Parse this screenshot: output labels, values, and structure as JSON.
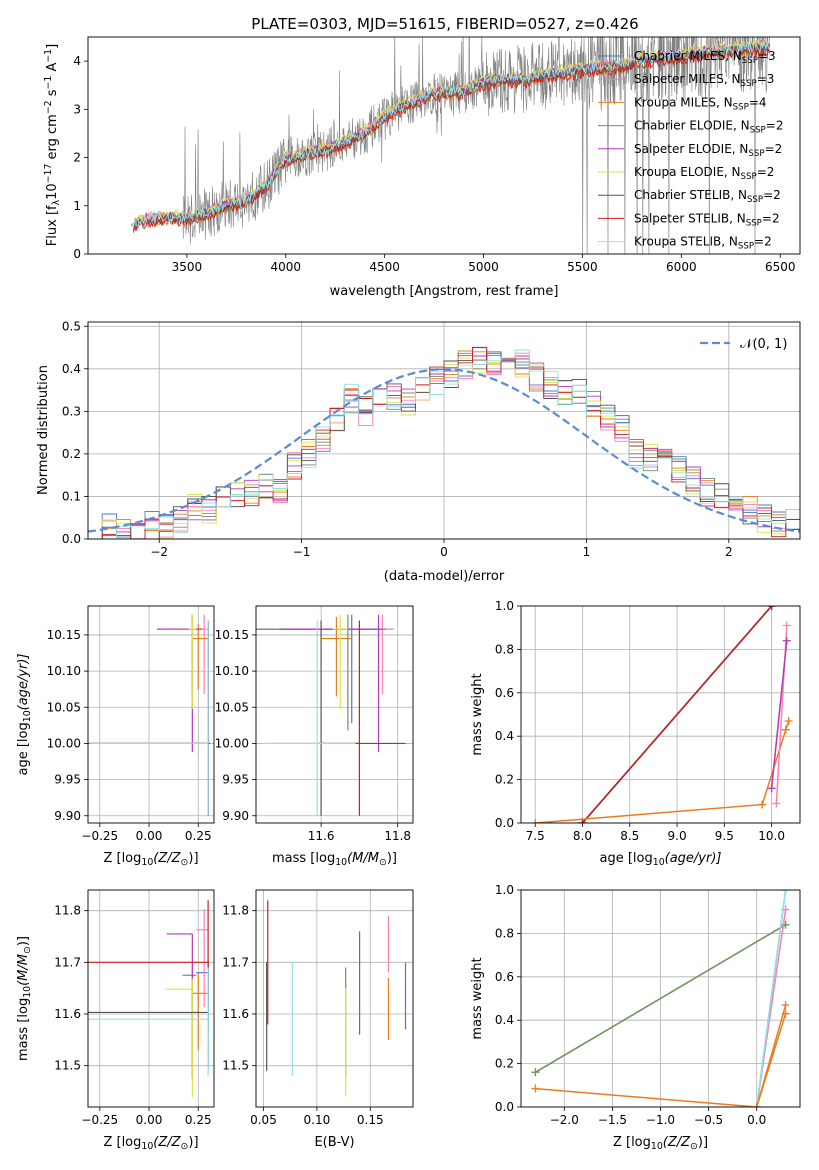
{
  "title": "PLATE=0303, MJD=51615, FIBERID=0527, z=0.426",
  "colors": {
    "Chabrier MILES": "#4878cf",
    "Salpeter MILES": "#ff7fb0",
    "Kroupa MILES": "#e87c1e",
    "Chabrier ELODIE": "#6e8f6e",
    "Salpeter ELODIE": "#b23bbf",
    "Kroupa ELODIE": "#dde34a",
    "Chabrier STELIB": "#555555",
    "Salpeter STELIB": "#cc1f1f",
    "Kroupa STELIB": "#8ee3e8",
    "data": "#808080",
    "normal": "#5b8bd6",
    "grid": "#b0b0b0"
  },
  "chart_data": [
    {
      "type": "line",
      "xlabel": "wavelength [Angstrom, rest frame]",
      "ylabel_main": "Flux [f",
      "ylabel_sub": "λ",
      "ylabel_rest": "10",
      "ylabel_exp1": "−17",
      "ylabel_units": " erg cm",
      "ylabel_exp2": "−2",
      "ylabel_units2": " s",
      "ylabel_exp3": "−1",
      "ylabel_units3": " A",
      "ylabel_exp4": "−1",
      "ylabel_close": "]",
      "xlim": [
        3000,
        6600
      ],
      "ylim": [
        0,
        4.5
      ],
      "xticks": [
        3500,
        4000,
        4500,
        5000,
        5500,
        6000,
        6500
      ],
      "yticks": [
        0,
        1,
        2,
        3,
        4
      ],
      "grid": false,
      "legend_position": "top-right",
      "continuum": {
        "x": [
          3220,
          3300,
          3400,
          3500,
          3600,
          3700,
          3800,
          3900,
          4000,
          4100,
          4200,
          4300,
          4400,
          4500,
          4600,
          4700,
          4800,
          4900,
          5000,
          5100,
          5200,
          5300,
          5400,
          5500,
          5600,
          5700,
          5800,
          5900,
          6000,
          6100,
          6200,
          6300,
          6400,
          6450
        ],
        "y": [
          0.6,
          0.7,
          0.75,
          0.72,
          0.85,
          1.0,
          1.1,
          1.4,
          1.95,
          2.05,
          2.15,
          2.3,
          2.5,
          2.85,
          3.05,
          3.25,
          3.35,
          3.35,
          3.55,
          3.6,
          3.6,
          3.7,
          3.75,
          3.8,
          3.85,
          3.9,
          4.0,
          4.05,
          4.1,
          4.15,
          4.2,
          4.25,
          4.25,
          4.3
        ]
      },
      "series": [
        {
          "name": "Chabrier MILES",
          "nssp": "3"
        },
        {
          "name": "Salpeter MILES",
          "nssp": "3"
        },
        {
          "name": "Kroupa MILES",
          "nssp": "4"
        },
        {
          "name": "Chabrier ELODIE",
          "nssp": "2"
        },
        {
          "name": "Salpeter ELODIE",
          "nssp": "2"
        },
        {
          "name": "Kroupa ELODIE",
          "nssp": "2"
        },
        {
          "name": "Chabrier STELIB",
          "nssp": "2"
        },
        {
          "name": "Salpeter STELIB",
          "nssp": "2"
        },
        {
          "name": "Kroupa STELIB",
          "nssp": "2"
        }
      ],
      "legend_sub": "SSP"
    },
    {
      "type": "histogram",
      "xlabel": "(data-model)/error",
      "ylabel": "Normed distribution",
      "xlim": [
        -2.5,
        2.5
      ],
      "ylim": [
        0,
        0.51
      ],
      "xticks": [
        -2,
        -1,
        0,
        1,
        2
      ],
      "yticks": [
        0.0,
        0.1,
        0.2,
        0.3,
        0.4,
        0.5
      ],
      "grid": true,
      "legend_position": "top-right",
      "normal_label": "𝒩(0, 1)",
      "bin_edges": [
        -2.5,
        -2.4,
        -2.3,
        -2.2,
        -2.1,
        -2.0,
        -1.9,
        -1.8,
        -1.7,
        -1.6,
        -1.5,
        -1.4,
        -1.3,
        -1.2,
        -1.1,
        -1.0,
        -0.9,
        -0.8,
        -0.7,
        -0.6,
        -0.5,
        -0.4,
        -0.3,
        -0.2,
        -0.1,
        0.0,
        0.1,
        0.2,
        0.3,
        0.4,
        0.5,
        0.6,
        0.7,
        0.8,
        0.9,
        1.0,
        1.1,
        1.2,
        1.3,
        1.4,
        1.5,
        1.6,
        1.7,
        1.8,
        1.9,
        2.0,
        2.1,
        2.2,
        2.3,
        2.4,
        2.5
      ],
      "base_heights": [
        0.02,
        0.025,
        0.02,
        0.03,
        0.03,
        0.035,
        0.045,
        0.07,
        0.07,
        0.09,
        0.11,
        0.11,
        0.12,
        0.12,
        0.17,
        0.2,
        0.24,
        0.28,
        0.33,
        0.3,
        0.32,
        0.33,
        0.32,
        0.35,
        0.37,
        0.39,
        0.41,
        0.42,
        0.42,
        0.42,
        0.41,
        0.38,
        0.36,
        0.34,
        0.35,
        0.32,
        0.29,
        0.26,
        0.2,
        0.19,
        0.18,
        0.16,
        0.14,
        0.11,
        0.1,
        0.08,
        0.07,
        0.05,
        0.04,
        0.04
      ]
    },
    {
      "type": "errorbar",
      "xlabel": "Z [log",
      "xlabel_sub": "10",
      "xlabel_tail": "(Z/Z",
      "xlabel_sun": "⊙",
      "xlabel_close": ")]",
      "ylabel": "age  [log",
      "ylabel_sub": "10",
      "ylabel_tail": "(age/yr)]",
      "xlim": [
        -0.31,
        0.33
      ],
      "ylim": [
        9.89,
        10.19
      ],
      "xticks": [
        -0.25,
        0.0,
        0.25
      ],
      "yticks": [
        9.9,
        9.95,
        10.0,
        10.05,
        10.1,
        10.15
      ],
      "points": [
        {
          "series": "Chabrier MILES",
          "x": 0.3,
          "y": 10.0,
          "xerr": [
            0.61,
            0.0
          ],
          "yerr": [
            0.1,
            0.17
          ]
        },
        {
          "series": "Salpeter MILES",
          "x": 0.28,
          "y": 10.158,
          "xerr": [
            0.05,
            0.02
          ],
          "yerr": [
            0.09,
            0.02
          ]
        },
        {
          "series": "Kroupa MILES",
          "x": 0.25,
          "y": 10.145,
          "xerr": [
            0.03,
            0.05
          ],
          "yerr": [
            0.07,
            0.02
          ]
        },
        {
          "series": "Chabrier ELODIE",
          "x": 0.22,
          "y": 10.158,
          "xerr": [
            0.02,
            0.02
          ],
          "yerr": [
            0.09,
            0.02
          ]
        },
        {
          "series": "Salpeter ELODIE",
          "x": 0.22,
          "y": 10.158,
          "xerr": [
            0.18,
            0.05
          ],
          "yerr": [
            0.17,
            0.02
          ]
        },
        {
          "series": "Kroupa ELODIE",
          "x": 0.22,
          "y": 10.158,
          "xerr": [
            0.02,
            0.02
          ],
          "yerr": [
            0.11,
            0.02
          ]
        },
        {
          "series": "Chabrier STELIB",
          "x": 0.3,
          "y": 10.0,
          "xerr": [
            0.6,
            0.01
          ],
          "yerr": [
            0.1,
            0.17
          ]
        },
        {
          "series": "Salpeter STELIB",
          "x": 0.3,
          "y": 10.0,
          "xerr": [
            0.6,
            0.0
          ],
          "yerr": [
            0.1,
            0.17
          ]
        },
        {
          "series": "Kroupa STELIB",
          "x": 0.3,
          "y": 10.0,
          "xerr": [
            0.6,
            0.0
          ],
          "yerr": [
            0.1,
            0.17
          ]
        }
      ]
    },
    {
      "type": "errorbar",
      "xlabel": "mass [log",
      "xlabel_sub": "10",
      "xlabel_tail": "(M/M",
      "xlabel_sun": "⊙",
      "xlabel_close": ")]",
      "xlim": [
        11.43,
        11.84
      ],
      "ylim": [
        9.89,
        10.19
      ],
      "xticks": [
        11.6,
        11.8
      ],
      "yticks": [
        9.9,
        9.95,
        10.0,
        10.05,
        10.1,
        10.15
      ],
      "points": [
        {
          "series": "Chabrier MILES",
          "x": 11.68,
          "y": 10.158,
          "xerr": [
            0.27,
            0.03
          ],
          "yerr": [
            0.13,
            0.02
          ]
        },
        {
          "series": "Salpeter MILES",
          "x": 11.76,
          "y": 10.158,
          "xerr": [
            0.05,
            0.03
          ],
          "yerr": [
            0.09,
            0.02
          ]
        },
        {
          "series": "Kroupa MILES",
          "x": 11.64,
          "y": 10.145,
          "xerr": [
            0.04,
            0.04
          ],
          "yerr": [
            0.08,
            0.03
          ]
        },
        {
          "series": "Chabrier ELODIE",
          "x": 11.67,
          "y": 10.158,
          "xerr": [
            0.26,
            0.1
          ],
          "yerr": [
            0.14,
            0.02
          ]
        },
        {
          "series": "Salpeter ELODIE",
          "x": 11.75,
          "y": 10.158,
          "xerr": [
            0.26,
            0.01
          ],
          "yerr": [
            0.17,
            0.02
          ]
        },
        {
          "series": "Kroupa ELODIE",
          "x": 11.65,
          "y": 10.158,
          "xerr": [
            0.02,
            0.02
          ],
          "yerr": [
            0.11,
            0.02
          ]
        },
        {
          "series": "Chabrier STELIB",
          "x": 11.6,
          "y": 10.0,
          "xerr": [
            0.13,
            0.1
          ],
          "yerr": [
            0.1,
            0.17
          ]
        },
        {
          "series": "Salpeter STELIB",
          "x": 11.7,
          "y": 10.0,
          "xerr": [
            0.11,
            0.12
          ],
          "yerr": [
            0.1,
            0.17
          ]
        },
        {
          "series": "Kroupa STELIB",
          "x": 11.59,
          "y": 10.0,
          "xerr": [
            0.14,
            0.1
          ],
          "yerr": [
            0.1,
            0.17
          ]
        }
      ]
    },
    {
      "type": "line",
      "xlabel": "age  [log",
      "xlabel_sub": "10",
      "xlabel_tail": "(age/yr)]",
      "ylabel": "mass weight",
      "xlim": [
        7.35,
        10.3
      ],
      "ylim": [
        0,
        1.0
      ],
      "xticks": [
        7.5,
        8.0,
        8.5,
        9.0,
        9.5,
        10.0
      ],
      "yticks": [
        0.0,
        0.2,
        0.4,
        0.6,
        0.8,
        1.0
      ],
      "grid": true,
      "series": [
        {
          "name": "Chabrier MILES",
          "x": [
            8.0,
            10.0
          ],
          "y": [
            0.0,
            1.0
          ]
        },
        {
          "name": "Kroupa STELIB",
          "x": [
            8.0,
            10.0
          ],
          "y": [
            0.0,
            1.0
          ]
        },
        {
          "name": "Chabrier ELODIE",
          "x": [
            8.0,
            10.0
          ],
          "y": [
            0.0,
            1.0
          ]
        },
        {
          "name": "Chabrier STELIB",
          "x": [
            8.0,
            10.0
          ],
          "y": [
            0.0,
            1.0
          ]
        },
        {
          "name": "Salpeter STELIB",
          "x": [
            8.0,
            10.0
          ],
          "y": [
            0.0,
            1.0
          ]
        },
        {
          "name": "Kroupa MILES",
          "x": [
            7.5,
            9.9,
            10.15,
            10.18
          ],
          "y": [
            0.0,
            0.085,
            0.43,
            0.47
          ]
        },
        {
          "name": "Salpeter MILES",
          "x": [
            10.05,
            10.16
          ],
          "y": [
            0.09,
            0.91
          ]
        },
        {
          "name": "Kroupa ELODIE",
          "x": [
            10.0,
            10.16
          ],
          "y": [
            0.16,
            0.84
          ]
        },
        {
          "name": "Salpeter ELODIE",
          "x": [
            10.0,
            10.16
          ],
          "y": [
            0.16,
            0.84
          ]
        }
      ]
    },
    {
      "type": "errorbar",
      "xlabel": "Z [log",
      "xlabel_sub": "10",
      "xlabel_tail": "(Z/Z",
      "xlabel_sun": "⊙",
      "xlabel_close": ")]",
      "ylabel": "mass [log",
      "ylabel_sub": "10",
      "ylabel_tail": "(M/M",
      "ylabel_sun": "⊙",
      "ylabel_close": ")]",
      "xlim": [
        -0.31,
        0.33
      ],
      "ylim": [
        11.42,
        11.84
      ],
      "xticks": [
        -0.25,
        0.0,
        0.25
      ],
      "yticks": [
        11.5,
        11.6,
        11.7,
        11.8
      ],
      "points": [
        {
          "series": "Chabrier MILES",
          "x": 0.3,
          "y": 11.68,
          "xerr": [
            0.06,
            0.0
          ],
          "yerr": [
            0.12,
            0.02
          ]
        },
        {
          "series": "Salpeter MILES",
          "x": 0.28,
          "y": 11.763,
          "xerr": [
            0.04,
            0.02
          ],
          "yerr": [
            0.15,
            0.04
          ]
        },
        {
          "series": "Kroupa MILES",
          "x": 0.25,
          "y": 11.64,
          "xerr": [
            0.03,
            0.05
          ],
          "yerr": [
            0.11,
            0.04
          ]
        },
        {
          "series": "Chabrier ELODIE",
          "x": 0.22,
          "y": 11.675,
          "xerr": [
            0.05,
            0.02
          ],
          "yerr": [
            0.2,
            0.02
          ]
        },
        {
          "series": "Salpeter ELODIE",
          "x": 0.22,
          "y": 11.755,
          "xerr": [
            0.13,
            0.0
          ],
          "yerr": [
            0.28,
            0.0
          ]
        },
        {
          "series": "Kroupa ELODIE",
          "x": 0.22,
          "y": 11.648,
          "xerr": [
            0.14,
            0.0
          ],
          "yerr": [
            0.21,
            0.02
          ]
        },
        {
          "series": "Chabrier STELIB",
          "x": 0.3,
          "y": 11.603,
          "xerr": [
            0.61,
            0.0
          ],
          "yerr": [
            0.11,
            0.1
          ]
        },
        {
          "series": "Salpeter STELIB",
          "x": 0.3,
          "y": 11.7,
          "xerr": [
            0.61,
            0.0
          ],
          "yerr": [
            0.08,
            0.12
          ]
        },
        {
          "series": "Kroupa STELIB",
          "x": 0.3,
          "y": 11.59,
          "xerr": [
            0.61,
            0.0
          ],
          "yerr": [
            0.11,
            0.1
          ]
        }
      ]
    },
    {
      "type": "errorbar",
      "xlabel": "E(B-V)",
      "xlim": [
        0.043,
        0.19
      ],
      "ylim": [
        11.42,
        11.84
      ],
      "xticks": [
        0.05,
        0.1,
        0.15
      ],
      "yticks": [
        11.5,
        11.6,
        11.7,
        11.8
      ],
      "points": [
        {
          "series": "Chabrier MILES",
          "x": 0.183,
          "y": 11.64,
          "xerr": [
            0.0,
            0.0
          ],
          "yerr": [
            0.07,
            0.06
          ]
        },
        {
          "series": "Salpeter MILES",
          "x": 0.167,
          "y": 11.75,
          "xerr": [
            0.0,
            0.0
          ],
          "yerr": [
            0.07,
            0.04
          ]
        },
        {
          "series": "Kroupa MILES",
          "x": 0.167,
          "y": 11.62,
          "xerr": [
            0.0,
            0.0
          ],
          "yerr": [
            0.07,
            0.05
          ]
        },
        {
          "series": "Chabrier ELODIE",
          "x": 0.127,
          "y": 11.64,
          "xerr": [
            0.0,
            0.0
          ],
          "yerr": [
            0.16,
            0.05
          ]
        },
        {
          "series": "Salpeter ELODIE",
          "x": 0.14,
          "y": 11.68,
          "xerr": [
            0.0,
            0.0
          ],
          "yerr": [
            0.12,
            0.08
          ]
        },
        {
          "series": "Kroupa ELODIE",
          "x": 0.127,
          "y": 11.55,
          "xerr": [
            0.0,
            0.0
          ],
          "yerr": [
            0.11,
            0.1
          ]
        },
        {
          "series": "Chabrier STELIB",
          "x": 0.053,
          "y": 11.6,
          "xerr": [
            0.0,
            0.0
          ],
          "yerr": [
            0.11,
            0.1
          ]
        },
        {
          "series": "Salpeter STELIB",
          "x": 0.054,
          "y": 11.7,
          "xerr": [
            0.0,
            0.0
          ],
          "yerr": [
            0.12,
            0.12
          ]
        },
        {
          "series": "Kroupa STELIB",
          "x": 0.077,
          "y": 11.59,
          "xerr": [
            0.0,
            0.0
          ],
          "yerr": [
            0.11,
            0.11
          ]
        }
      ]
    },
    {
      "type": "line",
      "xlabel": "Z [log",
      "xlabel_sub": "10",
      "xlabel_tail": "(Z/Z",
      "xlabel_sun": "⊙",
      "xlabel_close": ")]",
      "ylabel": "mass weight",
      "xlim": [
        -2.45,
        0.45
      ],
      "ylim": [
        0,
        1.0
      ],
      "xticks": [
        -2.0,
        -1.5,
        -1.0,
        -0.5,
        0.0
      ],
      "yticks": [
        0.0,
        0.2,
        0.4,
        0.6,
        0.8,
        1.0
      ],
      "grid": true,
      "series": [
        {
          "name": "Kroupa ELODIE",
          "x": [
            -2.3,
            0.3
          ],
          "y": [
            0.16,
            0.84
          ]
        },
        {
          "name": "Chabrier ELODIE",
          "x": [
            -2.3,
            0.3
          ],
          "y": [
            0.16,
            0.84
          ]
        },
        {
          "name": "Kroupa MILES",
          "x": [
            -2.3,
            0.0,
            0.3
          ],
          "y": [
            0.085,
            0.0,
            0.47
          ]
        },
        {
          "name": "Salpeter MILES",
          "x": [
            0.0,
            0.3
          ],
          "y": [
            0.0,
            0.91
          ]
        },
        {
          "name": "Chabrier MILES",
          "x": [
            0.0,
            0.3
          ],
          "y": [
            0.0,
            1.0
          ]
        },
        {
          "name": "Kroupa STELIB",
          "x": [
            0.0,
            0.3
          ],
          "y": [
            0.0,
            1.0
          ]
        },
        {
          "name": "Kroupa MILES",
          "x": [
            0.0,
            0.3
          ],
          "y": [
            0.0,
            0.43
          ]
        }
      ]
    }
  ]
}
